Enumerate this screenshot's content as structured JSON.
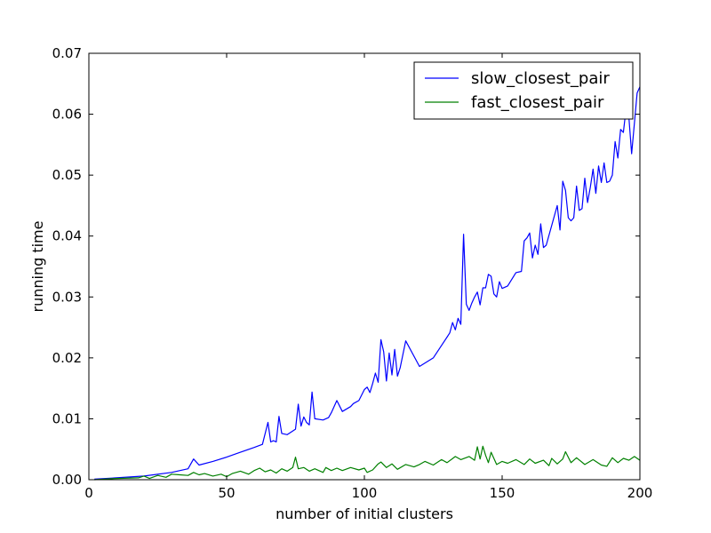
{
  "chart_data": {
    "type": "line",
    "xlabel": "number of initial clusters",
    "ylabel": "running time",
    "xlim": [
      0,
      200
    ],
    "ylim": [
      0,
      0.07
    ],
    "xticks": [
      0,
      50,
      100,
      150,
      200
    ],
    "xtick_labels": [
      "0",
      "50",
      "100",
      "150",
      "200"
    ],
    "yticks": [
      0,
      0.01,
      0.02,
      0.03,
      0.04,
      0.05,
      0.06,
      0.07
    ],
    "ytick_labels": [
      "0.00",
      "0.01",
      "0.02",
      "0.03",
      "0.04",
      "0.05",
      "0.06",
      "0.07"
    ],
    "grid": false,
    "legend_position": "top-right",
    "series": [
      {
        "name": "slow_closest_pair",
        "color": "#0000ff",
        "x": [
          2,
          10,
          20,
          30,
          36,
          38,
          40,
          45,
          50,
          55,
          60,
          63,
          65,
          66,
          67,
          68,
          69,
          70,
          72,
          75,
          76,
          77,
          78,
          79,
          80,
          81,
          82,
          85,
          87,
          88,
          90,
          92,
          95,
          96,
          98,
          100,
          101,
          102,
          103,
          104,
          105,
          106,
          107,
          108,
          109,
          110,
          111,
          112,
          113,
          115,
          120,
          125,
          130,
          131,
          132,
          133,
          134,
          135,
          136,
          137,
          138,
          139,
          140,
          141,
          142,
          143,
          144,
          145,
          146,
          147,
          148,
          149,
          150,
          151,
          152,
          155,
          157,
          158,
          159,
          160,
          161,
          162,
          163,
          164,
          165,
          166,
          170,
          171,
          172,
          173,
          174,
          175,
          176,
          177,
          178,
          179,
          180,
          181,
          182,
          183,
          184,
          185,
          186,
          187,
          188,
          189,
          190,
          191,
          192,
          193,
          194,
          195,
          196,
          197,
          198,
          199,
          200
        ],
        "values": [
          0.0001,
          0.0003,
          0.0006,
          0.0012,
          0.0018,
          0.0034,
          0.0024,
          0.003,
          0.0037,
          0.0045,
          0.0053,
          0.0058,
          0.0094,
          0.0062,
          0.0064,
          0.0062,
          0.0104,
          0.0076,
          0.0074,
          0.0083,
          0.0124,
          0.0088,
          0.0103,
          0.0094,
          0.009,
          0.0144,
          0.01,
          0.0098,
          0.0102,
          0.011,
          0.013,
          0.0112,
          0.012,
          0.0125,
          0.013,
          0.0148,
          0.0152,
          0.0143,
          0.0158,
          0.0175,
          0.016,
          0.023,
          0.021,
          0.0162,
          0.0208,
          0.0172,
          0.0214,
          0.017,
          0.0184,
          0.0228,
          0.0186,
          0.02,
          0.0234,
          0.0241,
          0.0258,
          0.0246,
          0.0265,
          0.0255,
          0.0403,
          0.0288,
          0.0278,
          0.029,
          0.03,
          0.0308,
          0.0287,
          0.0315,
          0.0315,
          0.0337,
          0.0334,
          0.0305,
          0.03,
          0.0325,
          0.0314,
          0.0316,
          0.0318,
          0.034,
          0.0342,
          0.0392,
          0.0397,
          0.0405,
          0.0364,
          0.0385,
          0.037,
          0.042,
          0.0381,
          0.0385,
          0.045,
          0.041,
          0.049,
          0.0475,
          0.043,
          0.0425,
          0.043,
          0.0482,
          0.0442,
          0.0445,
          0.0495,
          0.0455,
          0.048,
          0.051,
          0.047,
          0.0515,
          0.0488,
          0.052,
          0.0488,
          0.049,
          0.05,
          0.0555,
          0.0528,
          0.0575,
          0.057,
          0.061,
          0.0595,
          0.0535,
          0.0585,
          0.0635,
          0.0645
        ]
      },
      {
        "name": "fast_closest_pair",
        "color": "#008000",
        "x": [
          2,
          10,
          18,
          20,
          22,
          25,
          28,
          30,
          33,
          36,
          38,
          40,
          42,
          45,
          48,
          50,
          52,
          55,
          58,
          60,
          62,
          64,
          66,
          68,
          70,
          72,
          74,
          75,
          76,
          78,
          80,
          82,
          85,
          86,
          88,
          90,
          92,
          95,
          98,
          100,
          101,
          103,
          105,
          106,
          108,
          110,
          112,
          115,
          118,
          120,
          122,
          125,
          128,
          130,
          133,
          135,
          138,
          140,
          141,
          142,
          143,
          144,
          145,
          146,
          148,
          150,
          152,
          155,
          158,
          160,
          162,
          165,
          167,
          168,
          170,
          172,
          173,
          175,
          177,
          180,
          183,
          186,
          188,
          190,
          192,
          194,
          196,
          198,
          200
        ],
        "values": [
          0.0,
          0.0002,
          0.0003,
          0.0006,
          0.0002,
          0.0007,
          0.0004,
          0.0009,
          0.0008,
          0.0007,
          0.0012,
          0.0008,
          0.001,
          0.0006,
          0.0009,
          0.0005,
          0.001,
          0.0014,
          0.0009,
          0.0015,
          0.0019,
          0.0013,
          0.0016,
          0.0011,
          0.0018,
          0.0014,
          0.002,
          0.0037,
          0.0018,
          0.002,
          0.0014,
          0.0018,
          0.0012,
          0.002,
          0.0015,
          0.0019,
          0.0015,
          0.002,
          0.0016,
          0.0019,
          0.0012,
          0.0016,
          0.0026,
          0.0029,
          0.002,
          0.0026,
          0.0017,
          0.0025,
          0.0021,
          0.0025,
          0.003,
          0.0024,
          0.0033,
          0.0028,
          0.0038,
          0.0033,
          0.0038,
          0.0032,
          0.0054,
          0.0034,
          0.0055,
          0.004,
          0.0028,
          0.0045,
          0.0025,
          0.003,
          0.0027,
          0.0033,
          0.0025,
          0.0034,
          0.0027,
          0.0032,
          0.0023,
          0.0035,
          0.0026,
          0.0034,
          0.0046,
          0.0028,
          0.0036,
          0.0025,
          0.0033,
          0.0024,
          0.0022,
          0.0036,
          0.0028,
          0.0035,
          0.0032,
          0.0038,
          0.0032
        ]
      }
    ]
  }
}
